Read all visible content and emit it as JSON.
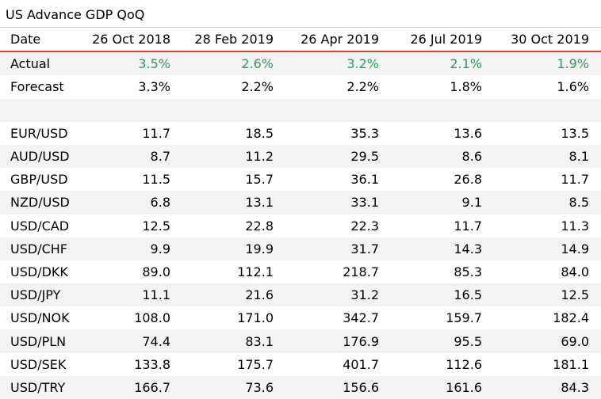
{
  "title": "US Advance GDP QoQ",
  "header": [
    "Date",
    "26 Oct 2018",
    "28 Feb 2019",
    "26 Apr 2019",
    "26 Jul 2019",
    "30 Oct 2019"
  ],
  "actual": {
    "label": "Actual",
    "values": [
      "3.5%",
      "2.6%",
      "3.2%",
      "2.1%",
      "1.9%"
    ],
    "color": "#2e9b5f"
  },
  "forecast": {
    "label": "Forecast",
    "values": [
      "3.3%",
      "2.2%",
      "2.2%",
      "1.8%",
      "1.6%"
    ]
  },
  "pairs": [
    {
      "label": "EUR/USD",
      "values": [
        "11.7",
        "18.5",
        "35.3",
        "13.6",
        "13.5"
      ]
    },
    {
      "label": "AUD/USD",
      "values": [
        "8.7",
        "11.2",
        "29.5",
        "8.6",
        "8.1"
      ]
    },
    {
      "label": "GBP/USD",
      "values": [
        "11.5",
        "15.7",
        "36.1",
        "26.8",
        "11.7"
      ]
    },
    {
      "label": "NZD/USD",
      "values": [
        "6.8",
        "13.1",
        "33.1",
        "9.1",
        "8.5"
      ]
    },
    {
      "label": "USD/CAD",
      "values": [
        "12.5",
        "22.8",
        "22.3",
        "11.7",
        "11.3"
      ]
    },
    {
      "label": "USD/CHF",
      "values": [
        "9.9",
        "19.9",
        "31.7",
        "14.3",
        "14.9"
      ]
    },
    {
      "label": "USD/DKK",
      "values": [
        "89.0",
        "112.1",
        "218.7",
        "85.3",
        "84.0"
      ]
    },
    {
      "label": "USD/JPY",
      "values": [
        "11.1",
        "21.6",
        "31.2",
        "16.5",
        "12.5"
      ]
    },
    {
      "label": "USD/NOK",
      "values": [
        "108.0",
        "171.0",
        "342.7",
        "159.7",
        "182.4"
      ]
    },
    {
      "label": "USD/PLN",
      "values": [
        "74.4",
        "83.1",
        "176.9",
        "95.5",
        "69.0"
      ]
    },
    {
      "label": "USD/SEK",
      "values": [
        "133.8",
        "175.7",
        "401.7",
        "112.6",
        "181.1"
      ]
    },
    {
      "label": "USD/TRY",
      "values": [
        "166.7",
        "73.6",
        "156.6",
        "161.6",
        "84.3"
      ]
    }
  ],
  "colors": {
    "header_rule": "#d6453d",
    "stripe": "#f3f3f3",
    "actual_text": "#2e9b5f"
  }
}
